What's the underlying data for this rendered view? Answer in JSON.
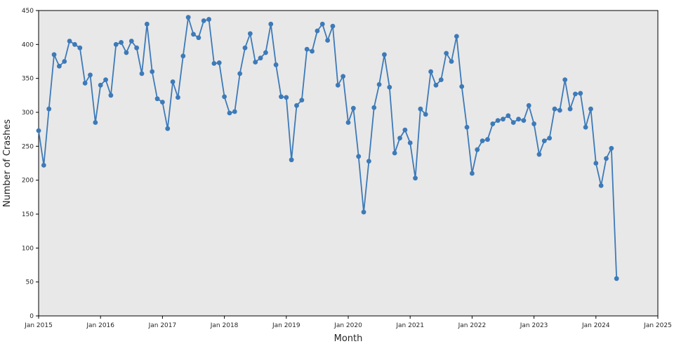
{
  "chart_data": {
    "type": "line",
    "title": "",
    "xlabel": "Month",
    "ylabel": "Number of Crashes",
    "x_tick_labels": [
      "Jan 2015",
      "Jan 2016",
      "Jan 2017",
      "Jan 2018",
      "Jan 2019",
      "Jan 2020",
      "Jan 2021",
      "Jan 2022",
      "Jan 2023",
      "Jan 2024",
      "Jan 2025"
    ],
    "x_tick_month_index": [
      0,
      12,
      24,
      36,
      48,
      60,
      72,
      84,
      96,
      108,
      120
    ],
    "x_range_months": 120,
    "ylim": [
      0,
      450
    ],
    "y_ticks": [
      0,
      50,
      100,
      150,
      200,
      250,
      300,
      350,
      400,
      450
    ],
    "legend": "none",
    "grid": false,
    "plot_bg": "#e8e8e8",
    "figure_bg": "#ffffff",
    "line_color": "#3d7ab8",
    "marker_color": "#3d7ab8",
    "axis_color": "#000000",
    "series": [
      {
        "name": "Number of Crashes",
        "start_month": "Jan 2015",
        "values": [
          273,
          222,
          305,
          385,
          368,
          375,
          405,
          400,
          395,
          343,
          355,
          285,
          340,
          348,
          325,
          400,
          403,
          388,
          405,
          395,
          357,
          430,
          360,
          320,
          315,
          276,
          345,
          322,
          383,
          440,
          415,
          410,
          435,
          437,
          372,
          373,
          323,
          299,
          301,
          357,
          395,
          416,
          374,
          380,
          388,
          430,
          370,
          323,
          322,
          230,
          310,
          318,
          393,
          390,
          420,
          430,
          406,
          427,
          340,
          353,
          285,
          306,
          235,
          153,
          228,
          307,
          341,
          385,
          337,
          240,
          262,
          274,
          255,
          203,
          305,
          297,
          360,
          340,
          348,
          387,
          375,
          412,
          338,
          278,
          210,
          245,
          258,
          260,
          283,
          288,
          290,
          295,
          285,
          290,
          288,
          310,
          283,
          238,
          258,
          262,
          305,
          303,
          348,
          305,
          327,
          328,
          278,
          305,
          225,
          192,
          232,
          247,
          55
        ]
      }
    ]
  }
}
